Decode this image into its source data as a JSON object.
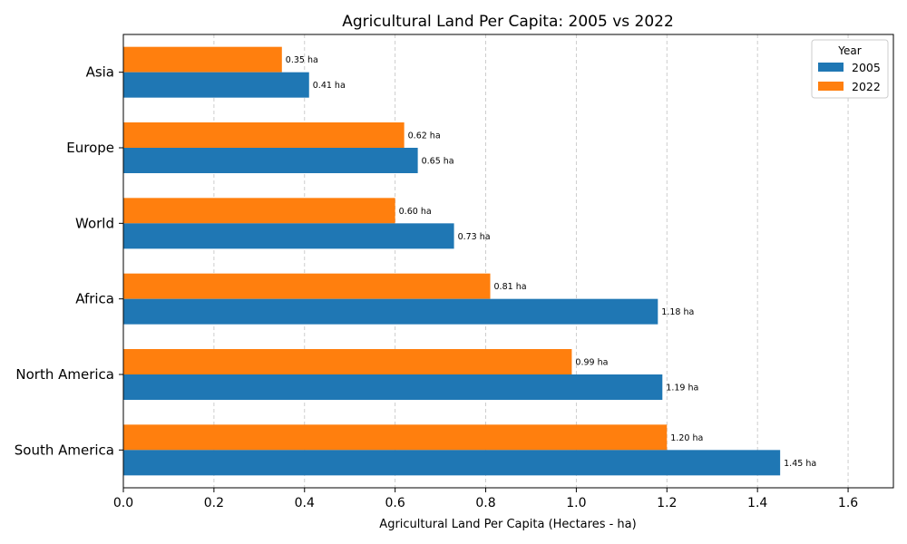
{
  "chart_data": {
    "type": "bar",
    "orientation": "horizontal",
    "title": "Agricultural Land Per Capita: 2005 vs 2022",
    "xlabel": "Agricultural Land Per Capita (Hectares - ha)",
    "ylabel": "",
    "xlim": [
      0,
      1.7
    ],
    "xticks": [
      "0.0",
      "0.2",
      "0.4",
      "0.6",
      "0.8",
      "1.0",
      "1.2",
      "1.4",
      "1.6"
    ],
    "grid": "vertical dashed",
    "categories": [
      "Asia",
      "Europe",
      "World",
      "Africa",
      "North America",
      "South America"
    ],
    "series": [
      {
        "name": "2005",
        "color": "#1f77b4",
        "values": [
          0.41,
          0.65,
          0.73,
          1.18,
          1.19,
          1.45
        ],
        "labels": [
          "0.41 ha",
          "0.65 ha",
          "0.73 ha",
          "1.18 ha",
          "1.19 ha",
          "1.45 ha"
        ]
      },
      {
        "name": "2022",
        "color": "#ff7f0e",
        "values": [
          0.35,
          0.62,
          0.6,
          0.81,
          0.99,
          1.2
        ],
        "labels": [
          "0.35 ha",
          "0.62 ha",
          "0.60 ha",
          "0.81 ha",
          "0.99 ha",
          "1.20 ha"
        ]
      }
    ],
    "legend": {
      "title": "Year",
      "placement": "top-right"
    }
  }
}
